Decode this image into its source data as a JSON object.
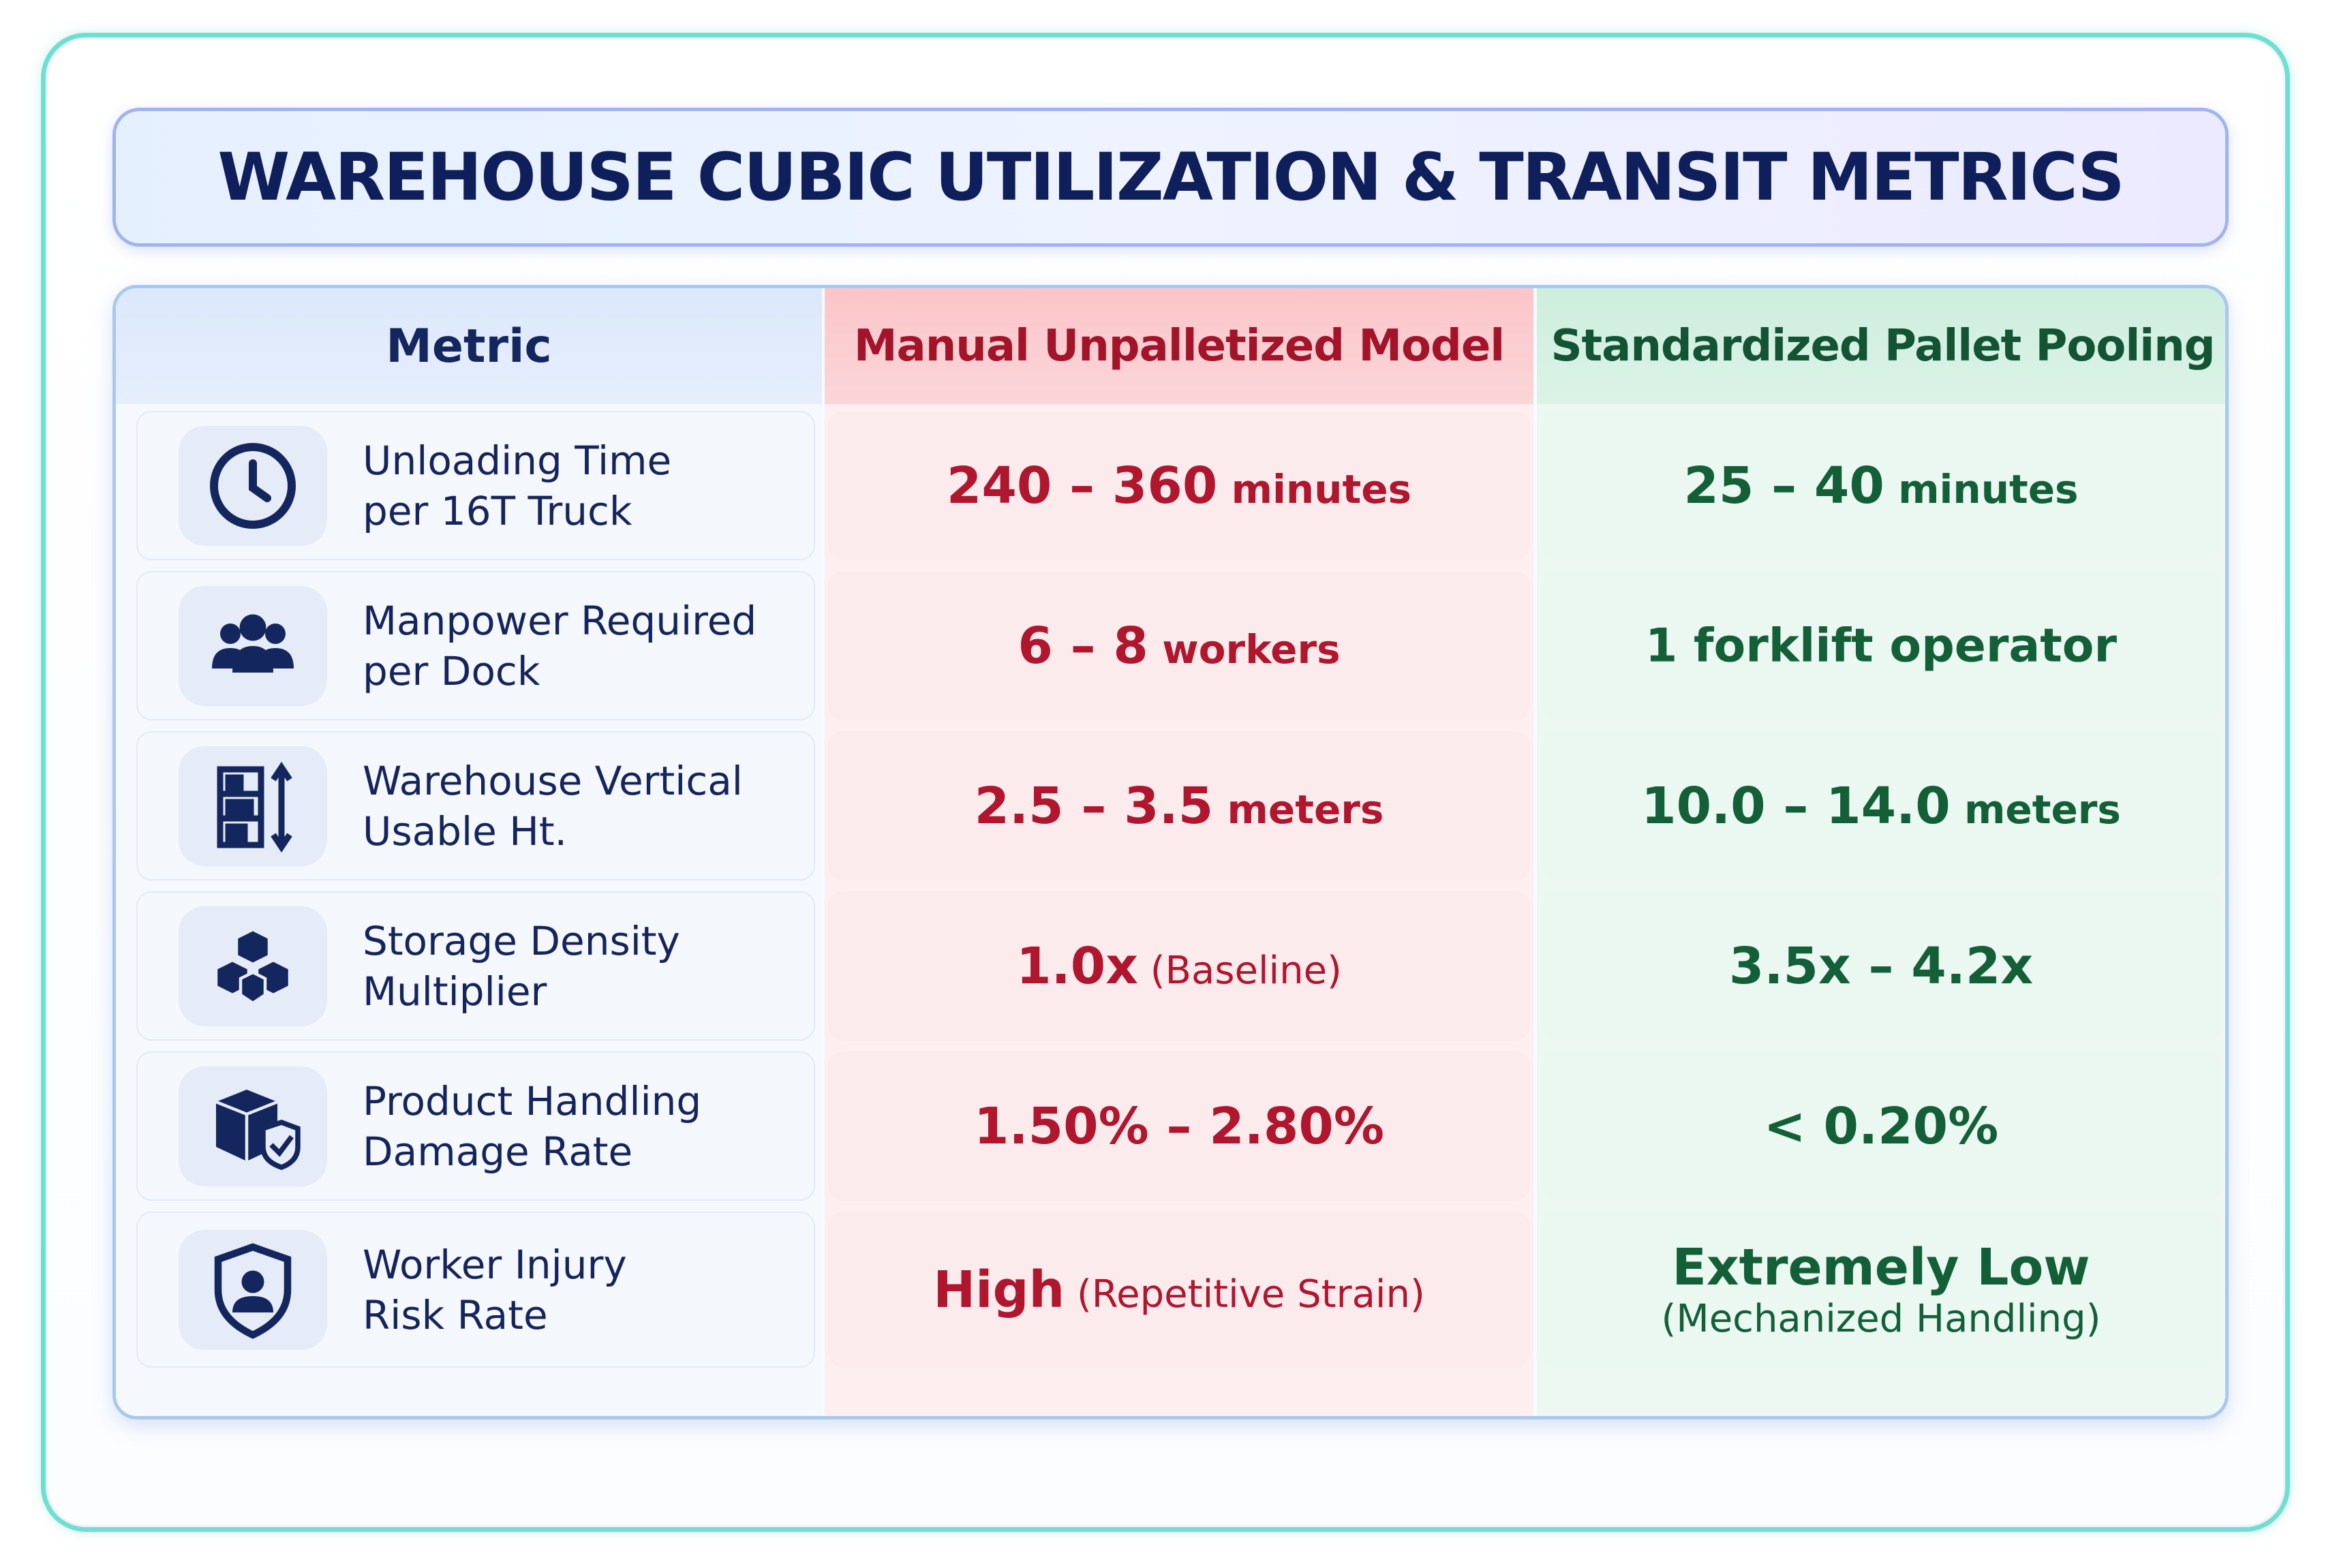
{
  "title": "WAREHOUSE CUBIC UTILIZATION & TRANSIT METRICS",
  "headers": {
    "metric": "Metric",
    "manual": "Manual Unpalletized Model",
    "pallet": "Standardized Pallet Pooling"
  },
  "rows": [
    {
      "icon": "clock-icon",
      "metric": "Unloading Time\nper 16T Truck",
      "manual": {
        "main": "240 – 360",
        "unit": " minutes"
      },
      "pallet": {
        "main": "25 – 40",
        "unit": " minutes"
      }
    },
    {
      "icon": "people-group-icon",
      "metric": "Manpower Required\nper Dock",
      "manual": {
        "main": "6 – 8",
        "unit": " workers"
      },
      "pallet": {
        "main": "1 forklift operator",
        "unit": ""
      }
    },
    {
      "icon": "vertical-rack-icon",
      "metric": "Warehouse Vertical\nUsable Ht.",
      "manual": {
        "main": "2.5 – 3.5",
        "unit": " meters"
      },
      "pallet": {
        "main": "10.0 – 14.0",
        "unit": " meters"
      }
    },
    {
      "icon": "stacked-boxes-icon",
      "metric": "Storage Density\nMultiplier",
      "manual": {
        "main": "1.0x",
        "unit": " (Baseline)"
      },
      "pallet": {
        "main": "3.5x – 4.2x",
        "unit": ""
      }
    },
    {
      "icon": "box-shield-icon",
      "metric": "Product Handling\nDamage Rate",
      "manual": {
        "main": "1.50% – 2.80%",
        "unit": ""
      },
      "pallet": {
        "main": "< 0.20%",
        "unit": ""
      }
    },
    {
      "icon": "worker-shield-icon",
      "metric": "Worker Injury\nRisk Rate",
      "manual": {
        "main": "High",
        "unit": " (Repetitive Strain)"
      },
      "pallet": {
        "main": "Extremely Low",
        "unit": "(Mechanized Handling)"
      }
    }
  ],
  "colors": {
    "title": "#0f1f5c",
    "manual": "#b0172f",
    "pallet": "#136038",
    "frame": "#6fe0cf"
  }
}
